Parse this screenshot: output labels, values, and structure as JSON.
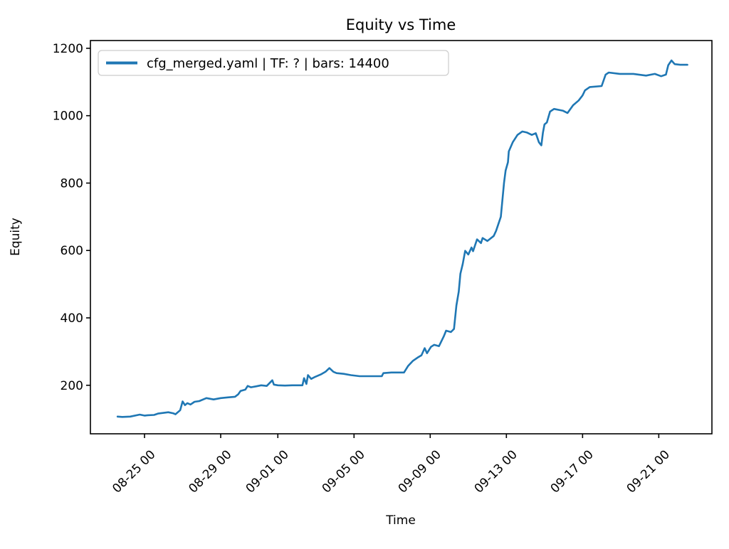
{
  "figure": {
    "title": "Equity vs Time",
    "background": "#ffffff"
  },
  "axes": {
    "xlabel": "Time",
    "ylabel": "Equity",
    "x_tick_labels": [
      "08-25 00",
      "08-29 00",
      "09-01 00",
      "09-05 00",
      "09-09 00",
      "09-13 00",
      "09-17 00",
      "09-21 00"
    ],
    "y_tick_labels": [
      "200",
      "400",
      "600",
      "800",
      "1000",
      "1200"
    ],
    "spine_color": "#000000",
    "tick_color": "#000000",
    "text_color": "#000000"
  },
  "legend": {
    "label": "cfg_merged.yaml | TF: ? | bars: 14400",
    "swatch_color": "#1f77b4",
    "border_color": "#cccccc",
    "background": "#ffffff"
  },
  "chart_data": {
    "type": "line",
    "title": "Equity vs Time",
    "xlabel": "Time",
    "ylabel": "Equity",
    "legend_entries": [
      "cfg_merged.yaml | TF: ? | bars: 14400"
    ],
    "legend_position": "upper left",
    "grid": false,
    "line_color": "#1f77b4",
    "x_time_format": "MM-DD HH",
    "x_tick_labels": [
      "08-25 00",
      "08-29 00",
      "09-01 00",
      "09-05 00",
      "09-09 00",
      "09-13 00",
      "09-17 00",
      "09-21 00"
    ],
    "y_ticks": [
      200,
      400,
      600,
      800,
      1000,
      1200
    ],
    "ylim": [
      56,
      1223
    ],
    "xlim_day_of_aug": [
      22.16,
      54.79
    ],
    "points": [
      [
        "08-23 14",
        107
      ],
      [
        "08-23 20",
        106
      ],
      [
        "08-24 06",
        107
      ],
      [
        "08-24 18",
        113
      ],
      [
        "08-25 00",
        110
      ],
      [
        "08-25 04",
        111
      ],
      [
        "08-25 12",
        112
      ],
      [
        "08-25 17",
        116
      ],
      [
        "08-26 06",
        120
      ],
      [
        "08-26 12",
        117
      ],
      [
        "08-26 15",
        114
      ],
      [
        "08-26 21",
        126
      ],
      [
        "08-27 00",
        152
      ],
      [
        "08-27 03",
        141
      ],
      [
        "08-27 06",
        147
      ],
      [
        "08-27 10",
        143
      ],
      [
        "08-27 15",
        151
      ],
      [
        "08-27 21",
        153
      ],
      [
        "08-28 06",
        162
      ],
      [
        "08-28 15",
        158
      ],
      [
        "08-29 00",
        162
      ],
      [
        "08-29 09",
        164
      ],
      [
        "08-29 18",
        166
      ],
      [
        "08-29 22",
        173
      ],
      [
        "08-30 01",
        183
      ],
      [
        "08-30 07",
        187
      ],
      [
        "08-30 10",
        198
      ],
      [
        "08-30 14",
        194
      ],
      [
        "08-30 21",
        197
      ],
      [
        "08-31 03",
        200
      ],
      [
        "08-31 10",
        198
      ],
      [
        "08-31 17",
        215
      ],
      [
        "08-31 19",
        202
      ],
      [
        "09-01 00",
        200
      ],
      [
        "09-01 09",
        199
      ],
      [
        "09-01 18",
        200
      ],
      [
        "09-02 07",
        200
      ],
      [
        "09-02 09",
        221
      ],
      [
        "09-02 12",
        204
      ],
      [
        "09-02 14",
        230
      ],
      [
        "09-02 18",
        219
      ],
      [
        "09-02 23",
        225
      ],
      [
        "09-03 06",
        232
      ],
      [
        "09-03 12",
        240
      ],
      [
        "09-03 17",
        251
      ],
      [
        "09-03 22",
        240
      ],
      [
        "09-04 02",
        236
      ],
      [
        "09-04 11",
        234
      ],
      [
        "09-04 20",
        230
      ],
      [
        "09-05 07",
        227
      ],
      [
        "09-05 20",
        227
      ],
      [
        "09-06 11",
        227
      ],
      [
        "09-06 13",
        236
      ],
      [
        "09-06 23",
        238
      ],
      [
        "09-07 15",
        238
      ],
      [
        "09-07 20",
        257
      ],
      [
        "09-08 02",
        272
      ],
      [
        "09-08 08",
        282
      ],
      [
        "09-08 13",
        289
      ],
      [
        "09-08 17",
        310
      ],
      [
        "09-08 20",
        295
      ],
      [
        "09-09 01",
        314
      ],
      [
        "09-09 05",
        320
      ],
      [
        "09-09 11",
        316
      ],
      [
        "09-09 17",
        345
      ],
      [
        "09-09 20",
        362
      ],
      [
        "09-10 02",
        358
      ],
      [
        "09-10 06",
        367
      ],
      [
        "09-10 09",
        437
      ],
      [
        "09-10 12",
        478
      ],
      [
        "09-10 14",
        531
      ],
      [
        "09-10 17",
        560
      ],
      [
        "09-10 20",
        599
      ],
      [
        "09-11 00",
        588
      ],
      [
        "09-11 04",
        609
      ],
      [
        "09-11 06",
        598
      ],
      [
        "09-11 11",
        633
      ],
      [
        "09-11 16",
        622
      ],
      [
        "09-11 18",
        637
      ],
      [
        "09-12 00",
        628
      ],
      [
        "09-12 08",
        643
      ],
      [
        "09-12 11",
        658
      ],
      [
        "09-12 17",
        700
      ],
      [
        "09-12 21",
        801
      ],
      [
        "09-12 23",
        837
      ],
      [
        "09-13 02",
        862
      ],
      [
        "09-13 03",
        894
      ],
      [
        "09-13 08",
        921
      ],
      [
        "09-13 14",
        943
      ],
      [
        "09-13 20",
        953
      ],
      [
        "09-14 02",
        950
      ],
      [
        "09-14 08",
        943
      ],
      [
        "09-14 13",
        948
      ],
      [
        "09-14 17",
        921
      ],
      [
        "09-14 20",
        912
      ],
      [
        "09-14 22",
        949
      ],
      [
        "09-15 00",
        974
      ],
      [
        "09-15 03",
        980
      ],
      [
        "09-15 07",
        1012
      ],
      [
        "09-15 12",
        1020
      ],
      [
        "09-15 23",
        1015
      ],
      [
        "09-16 05",
        1008
      ],
      [
        "09-16 12",
        1031
      ],
      [
        "09-16 19",
        1045
      ],
      [
        "09-17 00",
        1060
      ],
      [
        "09-17 03",
        1075
      ],
      [
        "09-17 09",
        1085
      ],
      [
        "09-18 00",
        1088
      ],
      [
        "09-18 05",
        1122
      ],
      [
        "09-18 09",
        1128
      ],
      [
        "09-18 23",
        1124
      ],
      [
        "09-19 16",
        1124
      ],
      [
        "09-20 08",
        1119
      ],
      [
        "09-20 19",
        1124
      ],
      [
        "09-21 03",
        1117
      ],
      [
        "09-21 09",
        1122
      ],
      [
        "09-21 12",
        1150
      ],
      [
        "09-21 16",
        1164
      ],
      [
        "09-21 20",
        1153
      ],
      [
        "09-22 03",
        1151
      ],
      [
        "09-22 12",
        1151
      ]
    ]
  }
}
